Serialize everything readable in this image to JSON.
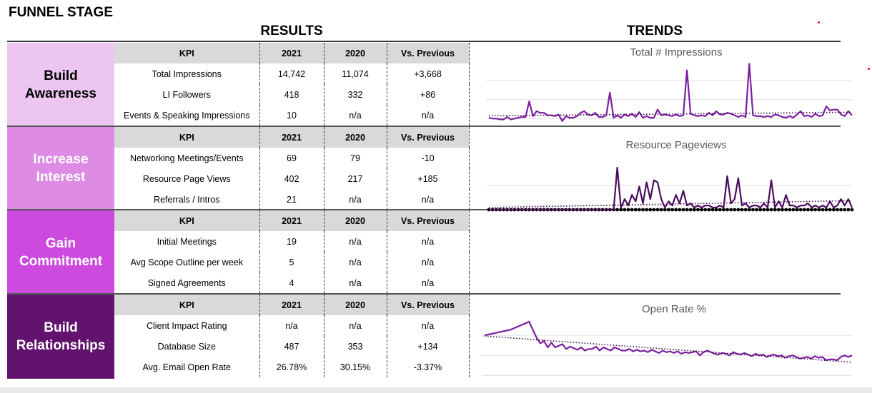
{
  "headers": {
    "funnel_stage": "FUNNEL STAGE",
    "results": "RESULTS",
    "trends": "TRENDS"
  },
  "colors": {
    "stage1": "#ecc6f1",
    "stage2": "#de8be6",
    "stage3": "#cc4ade",
    "stage4": "#62136e",
    "line_purple": "#7c1fa0",
    "line_dark": "#4a0e5e",
    "header_gray": "#d9d9d9"
  },
  "columns": {
    "kpi": "KPI",
    "y2021": "2021",
    "y2020": "2020",
    "vs": "Vs. Previous"
  },
  "stages": [
    {
      "name": "Build Awareness",
      "rows": [
        {
          "kpi": "Total Impressions",
          "y2021": "14,742",
          "y2020": "11,074",
          "vs": "+3,668"
        },
        {
          "kpi": "LI Followers",
          "y2021": "418",
          "y2020": "332",
          "vs": "+86"
        },
        {
          "kpi": "Events & Speaking Impressions",
          "y2021": "10",
          "y2020": "n/a",
          "vs": "n/a"
        }
      ]
    },
    {
      "name": "Increase Interest",
      "rows": [
        {
          "kpi": "Networking Meetings/Events",
          "y2021": "69",
          "y2020": "79",
          "vs": "-10"
        },
        {
          "kpi": "Resource Page Views",
          "y2021": "402",
          "y2020": "217",
          "vs": "+185"
        },
        {
          "kpi": "Referrals / Intros",
          "y2021": "21",
          "y2020": "n/a",
          "vs": "n/a"
        }
      ]
    },
    {
      "name": "Gain Commitment",
      "rows": [
        {
          "kpi": "Initial Meetings",
          "y2021": "19",
          "y2020": "n/a",
          "vs": "n/a"
        },
        {
          "kpi": "Avg Scope Outline per week",
          "y2021": "5",
          "y2020": "n/a",
          "vs": "n/a"
        },
        {
          "kpi": "Signed Agreements",
          "y2021": "4",
          "y2020": "n/a",
          "vs": "n/a"
        }
      ]
    },
    {
      "name": "Build Relationships",
      "rows": [
        {
          "kpi": "Client Impact Rating",
          "y2021": "n/a",
          "y2020": "n/a",
          "vs": "n/a"
        },
        {
          "kpi": "Database Size",
          "y2021": "487",
          "y2020": "353",
          "vs": "+134"
        },
        {
          "kpi": "Avg. Email Open Rate",
          "y2021": "26.78%",
          "y2020": "30.15%",
          "vs": "-3.37%"
        }
      ]
    }
  ],
  "chart_data": [
    {
      "type": "line",
      "title": "Total # Impressions",
      "grid": true,
      "trendline": true,
      "series": [
        {
          "values": [
            6,
            5,
            5,
            4,
            4,
            7,
            4,
            5,
            6,
            7,
            7,
            26,
            8,
            14,
            12,
            12,
            9,
            9,
            8,
            10,
            2,
            8,
            6,
            6,
            8,
            12,
            14,
            10,
            9,
            12,
            7,
            7,
            9,
            37,
            6,
            9,
            6,
            10,
            8,
            11,
            7,
            13,
            6,
            8,
            6,
            6,
            16,
            9,
            10,
            9,
            8,
            10,
            8,
            9,
            64,
            11,
            9,
            8,
            9,
            8,
            12,
            9,
            14,
            10,
            10,
            12,
            11,
            9,
            7,
            9,
            7,
            72,
            9,
            8,
            8,
            7,
            8,
            7,
            10,
            9,
            7,
            6,
            8,
            6,
            10,
            14,
            8,
            9,
            7,
            11,
            8,
            9,
            20,
            15,
            16,
            16,
            10,
            8,
            14,
            9
          ]
        }
      ]
    },
    {
      "type": "line",
      "title": "Resource Pageviews",
      "grid": true,
      "trendline": true,
      "series": [
        {
          "values": [
            0,
            0,
            0,
            0,
            0,
            0,
            0,
            0,
            0,
            0,
            0,
            0,
            0,
            0,
            0,
            0,
            0,
            0,
            0,
            0,
            0,
            0,
            0,
            0,
            0,
            0,
            0,
            0,
            0,
            0,
            0,
            0,
            0,
            0,
            0,
            0,
            0,
            0,
            0,
            0,
            0,
            0,
            0,
            0,
            0,
            0,
            0,
            0,
            0,
            0,
            0,
            0,
            0,
            0,
            0,
            0,
            0,
            0,
            0,
            0,
            0,
            0,
            0,
            0,
            0,
            0,
            0,
            0,
            0,
            0,
            0,
            0,
            0,
            0,
            0,
            0,
            0,
            0,
            0,
            0,
            0,
            0,
            0,
            0,
            0,
            0,
            0,
            0,
            0,
            0,
            0,
            0,
            0,
            0,
            0,
            0,
            0,
            0,
            0,
            0
          ]
        },
        {
          "values": [
            0,
            0,
            0,
            0,
            0,
            0,
            0,
            0,
            0,
            0,
            0,
            0,
            0,
            0,
            0,
            0,
            0,
            0,
            0,
            0,
            0,
            0,
            0,
            0,
            0,
            0,
            0,
            0,
            0,
            0,
            0,
            0,
            0,
            0,
            0,
            40,
            2,
            10,
            4,
            14,
            8,
            22,
            6,
            26,
            10,
            28,
            26,
            10,
            2,
            8,
            4,
            14,
            6,
            18,
            4,
            6,
            2,
            4,
            2,
            4,
            4,
            2,
            2,
            4,
            2,
            32,
            6,
            10,
            30,
            4,
            6,
            2,
            4,
            4,
            2,
            6,
            2,
            28,
            2,
            8,
            2,
            14,
            4,
            4,
            2,
            4,
            4,
            6,
            2,
            4,
            2,
            4,
            2,
            8,
            2,
            4,
            10,
            4,
            10,
            2
          ]
        }
      ]
    },
    {
      "type": "line",
      "title": "Open Rate %",
      "grid": true,
      "trendline": true,
      "series": [
        {
          "values": [
            55,
            56,
            57,
            58,
            59,
            60,
            61,
            62,
            64,
            66,
            68,
            70,
            72,
            62,
            52,
            45,
            48,
            40,
            46,
            40,
            42,
            44,
            38,
            41,
            39,
            37,
            40,
            36,
            38,
            38,
            41,
            36,
            40,
            38,
            36,
            40,
            38,
            36,
            36,
            38,
            35,
            37,
            35,
            36,
            34,
            37,
            35,
            33,
            36,
            34,
            35,
            33,
            35,
            32,
            34,
            33,
            34,
            35,
            30,
            34,
            36,
            34,
            32,
            31,
            33,
            32,
            30,
            34,
            32,
            31,
            33,
            31,
            29,
            32,
            30,
            31,
            28,
            30,
            31,
            29,
            30,
            27,
            29,
            30,
            28,
            26,
            27,
            28,
            26,
            29,
            27,
            28,
            24,
            25,
            25,
            24,
            28,
            30,
            28,
            30
          ]
        }
      ]
    }
  ]
}
